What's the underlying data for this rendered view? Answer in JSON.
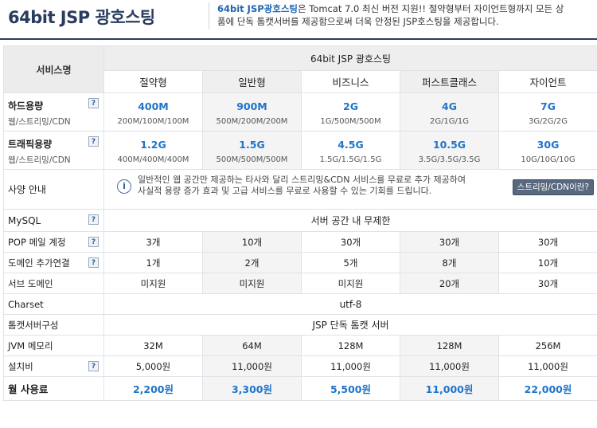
{
  "header": {
    "title": "64bit JSP 광호스팅",
    "desc_strong": "64bit JSP광호스팅",
    "desc_line1_rest": "은 Tomcat 7.0 최신 버전 지원!! 절약형부터 자이언트형까지 모든 상",
    "desc_line2": "품에 단독 톰캣서버를 제공함으로써 더욱 안정된 JSP호스팅을 제공합니다."
  },
  "table": {
    "service_label": "서비스명",
    "group_label": "64bit JSP 광호스팅",
    "plans": [
      "절약형",
      "일반형",
      "비즈니스",
      "퍼스트클래스",
      "자이언트"
    ],
    "disk": {
      "label": "하드용량",
      "note": "웹/스트리밍/CDN",
      "values": [
        "400M",
        "900M",
        "2G",
        "4G",
        "7G"
      ],
      "details": [
        "200M/100M/100M",
        "500M/200M/200M",
        "1G/500M/500M",
        "2G/1G/1G",
        "3G/2G/2G"
      ]
    },
    "traffic": {
      "label": "트래픽용량",
      "note": "웹/스트리밍/CDN",
      "values": [
        "1.2G",
        "1.5G",
        "4.5G",
        "10.5G",
        "30G"
      ],
      "details": [
        "400M/400M/400M",
        "500M/500M/500M",
        "1.5G/1.5G/1.5G",
        "3.5G/3.5G/3.5G",
        "10G/10G/10G"
      ]
    },
    "notice": {
      "label": "사양 안내",
      "line1": "일반적인 웹 공간만 제공하는 타사와 달리 스트리밍&CDN 서비스를 무료로 추가 제공하여",
      "line2": "사실적 용량 증가 효과 및 고급 서비스를 무료로 사용할 수 있는 기회를 드립니다.",
      "button": "스트리밍/CDN이란?"
    },
    "mysql": {
      "label": "MySQL",
      "value": "서버 공간 내 무제한"
    },
    "pop": {
      "label": "POP 메일 계정",
      "values": [
        "3개",
        "10개",
        "30개",
        "30개",
        "30개"
      ]
    },
    "domain": {
      "label": "도메인 추가연결",
      "values": [
        "1개",
        "2개",
        "5개",
        "8개",
        "10개"
      ]
    },
    "subdomain": {
      "label": "서브 도메인",
      "values": [
        "미지원",
        "미지원",
        "미지원",
        "20개",
        "30개"
      ]
    },
    "charset": {
      "label": "Charset",
      "value": "utf-8"
    },
    "tomcat": {
      "label": "톰캣서버구성",
      "value": "JSP 단독 톰캣 서버"
    },
    "jvm": {
      "label": "JVM 메모리",
      "values": [
        "32M",
        "64M",
        "128M",
        "128M",
        "256M"
      ]
    },
    "setup": {
      "label": "설치비",
      "values": [
        "5,000원",
        "11,000원",
        "11,000원",
        "11,000원",
        "11,000원"
      ]
    },
    "monthly": {
      "label": "월 사용료",
      "values": [
        "2,200원",
        "3,300원",
        "5,500원",
        "11,000원",
        "22,000원"
      ]
    },
    "help_glyph": "?",
    "info_glyph": "i"
  }
}
